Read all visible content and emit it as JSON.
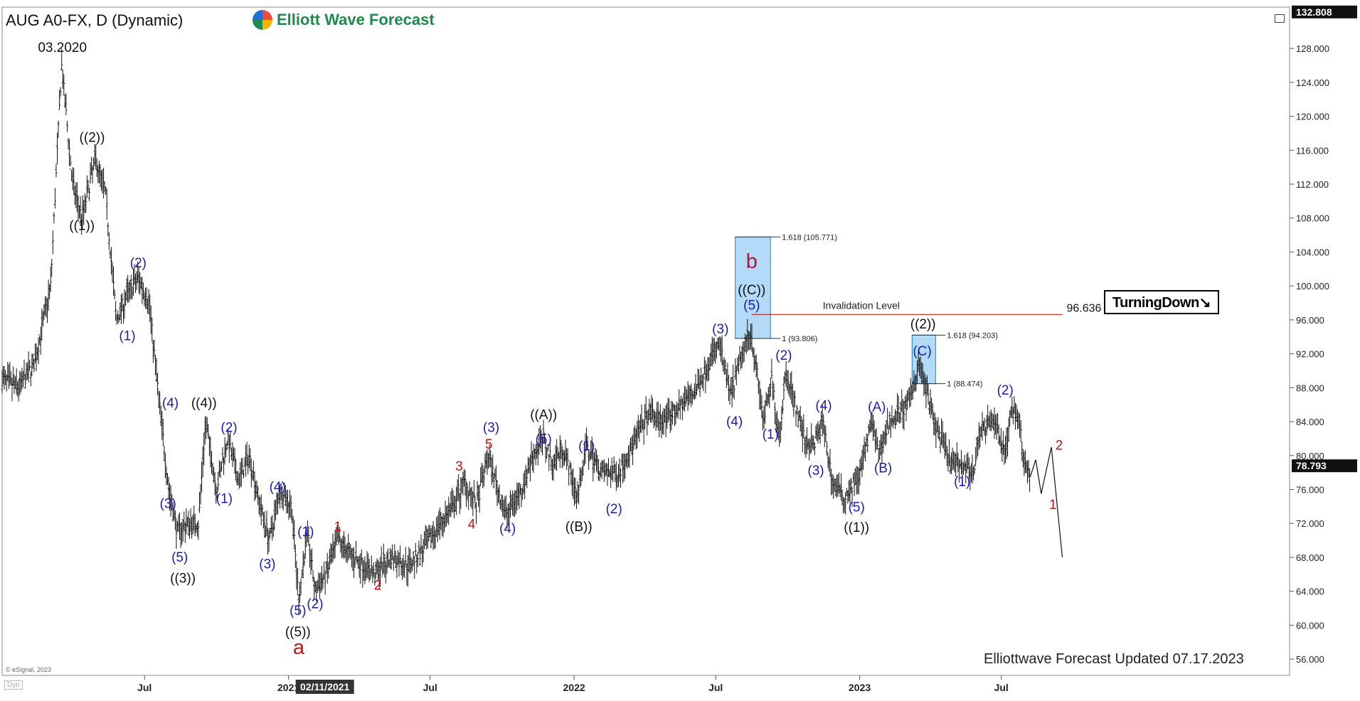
{
  "header": {
    "symbol_title": "AUG A0-FX, D (Dynamic)",
    "brand": "Elliott Wave Forecast"
  },
  "badge": {
    "label": "TurningDown↘"
  },
  "footer": {
    "updated": "Elliottwave Forecast Updated 07.17.2023",
    "credit": "© eSignal, 2023",
    "dyn": "Dyn"
  },
  "colors": {
    "black": "#111111",
    "blue": "#1a1ab8",
    "red": "#cc1111",
    "darkred": "#b0143c",
    "box_fill": "#b3dbf7",
    "box_stroke": "#1a7fc4",
    "price_line": "#d01c1c"
  },
  "chart_data": {
    "type": "line",
    "style": "ohlc-bars",
    "ylim": [
      54.5,
      133.5
    ],
    "yticks": [
      "56.000",
      "60.000",
      "64.000",
      "68.000",
      "72.000",
      "76.000",
      "80.000",
      "84.000",
      "88.000",
      "92.000",
      "96.000",
      "100.000",
      "104.000",
      "108.000",
      "112.000",
      "116.000",
      "120.000",
      "124.000",
      "128.000"
    ],
    "x_tick_labels": [
      "Jul",
      "2021",
      "02/11/2021",
      "Jul",
      "2022",
      "Jul",
      "2023",
      "Jul"
    ],
    "price_tags": {
      "top": "132.808",
      "last": "78.793"
    },
    "price_path": [
      [
        "2020-01-01",
        89
      ],
      [
        "2020-01-22",
        88
      ],
      [
        "2020-02-12",
        91
      ],
      [
        "2020-03-03",
        100
      ],
      [
        "2020-03-17",
        126
      ],
      [
        "2020-03-31",
        112
      ],
      [
        "2020-04-12",
        108
      ],
      [
        "2020-04-29",
        115
      ],
      [
        "2020-05-12",
        111
      ],
      [
        "2020-05-26",
        96
      ],
      [
        "2020-06-09",
        99
      ],
      [
        "2020-06-23",
        101
      ],
      [
        "2020-07-07",
        98
      ],
      [
        "2020-07-20",
        86
      ],
      [
        "2020-08-01",
        76
      ],
      [
        "2020-08-12",
        71
      ],
      [
        "2020-08-25",
        72
      ],
      [
        "2020-09-08",
        72
      ],
      [
        "2020-09-17",
        84
      ],
      [
        "2020-10-01",
        76
      ],
      [
        "2020-10-15",
        82
      ],
      [
        "2020-10-29",
        77
      ],
      [
        "2020-11-12",
        80
      ],
      [
        "2020-11-26",
        74
      ],
      [
        "2020-12-08",
        70
      ],
      [
        "2020-12-21",
        76
      ],
      [
        "2021-01-05",
        74
      ],
      [
        "2021-01-14",
        63
      ],
      [
        "2021-01-25",
        71
      ],
      [
        "2021-02-04",
        64
      ],
      [
        "2021-02-18",
        66
      ],
      [
        "2021-03-05",
        70
      ],
      [
        "2021-03-25",
        68
      ],
      [
        "2021-04-21",
        66
      ],
      [
        "2021-05-12",
        68
      ],
      [
        "2021-06-02",
        67
      ],
      [
        "2021-06-23",
        69
      ],
      [
        "2021-07-14",
        72
      ],
      [
        "2021-07-31",
        74
      ],
      [
        "2021-08-14",
        77
      ],
      [
        "2021-08-29",
        74
      ],
      [
        "2021-09-13",
        80
      ],
      [
        "2021-10-05",
        73
      ],
      [
        "2021-10-26",
        76
      ],
      [
        "2021-11-09",
        80
      ],
      [
        "2021-11-23",
        82
      ],
      [
        "2021-12-04",
        79
      ],
      [
        "2021-12-18",
        81
      ],
      [
        "2022-01-05",
        75
      ],
      [
        "2022-01-16",
        81
      ],
      [
        "2022-02-06",
        78
      ],
      [
        "2022-02-27",
        78
      ],
      [
        "2022-03-16",
        81
      ],
      [
        "2022-04-06",
        85
      ],
      [
        "2022-04-27",
        84
      ],
      [
        "2022-05-18",
        86
      ],
      [
        "2022-06-08",
        88
      ],
      [
        "2022-06-27",
        92
      ],
      [
        "2022-07-06",
        93
      ],
      [
        "2022-07-20",
        87
      ],
      [
        "2022-08-04",
        92
      ],
      [
        "2022-08-14",
        95
      ],
      [
        "2022-08-21",
        91
      ],
      [
        "2022-08-31",
        84
      ],
      [
        "2022-09-11",
        89
      ],
      [
        "2022-09-20",
        82
      ],
      [
        "2022-09-29",
        90
      ],
      [
        "2022-10-22",
        82
      ],
      [
        "2022-11-02",
        81
      ],
      [
        "2022-11-15",
        84
      ],
      [
        "2022-11-27",
        77
      ],
      [
        "2022-12-12",
        75
      ],
      [
        "2023-01-02",
        78
      ],
      [
        "2023-01-16",
        84
      ],
      [
        "2023-01-25",
        80
      ],
      [
        "2023-02-08",
        84
      ],
      [
        "2023-03-04",
        86
      ],
      [
        "2023-03-18",
        91
      ],
      [
        "2023-04-06",
        84
      ],
      [
        "2023-04-27",
        79
      ],
      [
        "2023-05-09",
        79
      ],
      [
        "2023-05-27",
        78
      ],
      [
        "2023-06-03",
        83
      ],
      [
        "2023-06-24",
        84
      ],
      [
        "2023-07-05",
        80
      ],
      [
        "2023-07-15",
        86
      ],
      [
        "2023-07-24",
        84
      ],
      [
        "2023-07-31",
        79
      ],
      [
        "2023-08-07",
        77.5
      ]
    ],
    "projection": [
      [
        "2023-08-07",
        77.5
      ],
      [
        "2023-08-14",
        79.5
      ],
      [
        "2023-08-21",
        75.5
      ],
      [
        "2023-09-03",
        81
      ],
      [
        "2023-09-17",
        68
      ]
    ],
    "blue_boxes": [
      {
        "x0": "2022-07-26",
        "x1": "2022-09-09",
        "y0": 93.806,
        "y1": 105.771,
        "top_label": "1.618 (105.771)",
        "bottom_label": "1 (93.806)"
      },
      {
        "x0": "2023-03-09",
        "x1": "2023-04-08",
        "y0": 88.474,
        "y1": 94.203,
        "top_label": "1.618 (94.203)",
        "bottom_label": "1 (88.474)"
      }
    ],
    "invalidation": {
      "x0": "2022-08-16",
      "x1": "2023-09-17",
      "y": 96.636,
      "label": "Invalidation Level",
      "value_label": "96.636"
    },
    "labels": [
      {
        "text": "03.2020",
        "date": "2020-03-18",
        "price": 127.6,
        "color": "black"
      },
      {
        "text": "((1))",
        "date": "2020-04-12",
        "price": 106.6,
        "color": "black"
      },
      {
        "text": "((2))",
        "date": "2020-04-25",
        "price": 117.0,
        "color": "black"
      },
      {
        "text": "(2)",
        "date": "2020-06-23",
        "price": 102.2,
        "color": "blue"
      },
      {
        "text": "(1)",
        "date": "2020-06-09",
        "price": 93.6,
        "color": "blue"
      },
      {
        "text": "(4)",
        "date": "2020-08-03",
        "price": 85.7,
        "color": "blue"
      },
      {
        "text": "((4))",
        "date": "2020-09-15",
        "price": 85.7,
        "color": "black"
      },
      {
        "text": "(2)",
        "date": "2020-10-17",
        "price": 82.8,
        "color": "blue"
      },
      {
        "text": "(3)",
        "date": "2020-07-31",
        "price": 73.8,
        "color": "blue"
      },
      {
        "text": "(1)",
        "date": "2020-10-11",
        "price": 74.4,
        "color": "blue"
      },
      {
        "text": "(5)",
        "date": "2020-08-15",
        "price": 67.5,
        "color": "blue"
      },
      {
        "text": "((3))",
        "date": "2020-08-19",
        "price": 65.0,
        "color": "black"
      },
      {
        "text": "(4)",
        "date": "2020-12-18",
        "price": 75.8,
        "color": "blue"
      },
      {
        "text": "(3)",
        "date": "2020-12-05",
        "price": 66.7,
        "color": "blue"
      },
      {
        "text": "(1)",
        "date": "2021-01-23",
        "price": 70.5,
        "color": "blue"
      },
      {
        "text": "1",
        "date": "2021-03-05",
        "price": 71.1,
        "color": "red"
      },
      {
        "text": "(5)",
        "date": "2021-01-13",
        "price": 61.2,
        "color": "blue"
      },
      {
        "text": "((5))",
        "date": "2021-01-13",
        "price": 58.7,
        "color": "black"
      },
      {
        "text": "(2)",
        "date": "2021-02-04",
        "price": 62.0,
        "color": "blue"
      },
      {
        "text": "a",
        "date": "2021-01-14",
        "price": 56.6,
        "color": "red",
        "size": 29
      },
      {
        "text": "2",
        "date": "2021-04-25",
        "price": 64.2,
        "color": "red"
      },
      {
        "text": "3",
        "date": "2021-08-07",
        "price": 78.2,
        "color": "red"
      },
      {
        "text": "4",
        "date": "2021-08-23",
        "price": 71.4,
        "color": "red"
      },
      {
        "text": "5",
        "date": "2021-09-14",
        "price": 80.8,
        "color": "red"
      },
      {
        "text": "(3)",
        "date": "2021-09-17",
        "price": 82.8,
        "color": "blue"
      },
      {
        "text": "(4)",
        "date": "2021-10-08",
        "price": 70.9,
        "color": "blue"
      },
      {
        "text": "((A))",
        "date": "2021-11-23",
        "price": 84.3,
        "color": "black"
      },
      {
        "text": "(5)",
        "date": "2021-11-23",
        "price": 81.4,
        "color": "blue"
      },
      {
        "text": "(1)",
        "date": "2022-01-17",
        "price": 80.6,
        "color": "blue"
      },
      {
        "text": "((B))",
        "date": "2022-01-07",
        "price": 71.1,
        "color": "black"
      },
      {
        "text": "(2)",
        "date": "2022-02-21",
        "price": 73.2,
        "color": "blue"
      },
      {
        "text": "b",
        "date": "2022-08-16",
        "price": 102.1,
        "color": "darkred",
        "size": 29
      },
      {
        "text": "((C))",
        "date": "2022-08-16",
        "price": 99.0,
        "color": "black"
      },
      {
        "text": "(5)",
        "date": "2022-08-16",
        "price": 97.2,
        "color": "blue"
      },
      {
        "text": "(3)",
        "date": "2022-07-07",
        "price": 94.4,
        "color": "blue"
      },
      {
        "text": "(4)",
        "date": "2022-07-25",
        "price": 83.5,
        "color": "blue"
      },
      {
        "text": "(2)",
        "date": "2022-09-26",
        "price": 91.3,
        "color": "blue"
      },
      {
        "text": "(1)",
        "date": "2022-09-09",
        "price": 82.0,
        "color": "blue"
      },
      {
        "text": "(4)",
        "date": "2022-11-16",
        "price": 85.4,
        "color": "blue"
      },
      {
        "text": "(3)",
        "date": "2022-11-06",
        "price": 77.7,
        "color": "blue"
      },
      {
        "text": "(5)",
        "date": "2022-12-28",
        "price": 73.4,
        "color": "blue"
      },
      {
        "text": "((1))",
        "date": "2022-12-28",
        "price": 71.0,
        "color": "black"
      },
      {
        "text": "(A)",
        "date": "2023-01-23",
        "price": 85.2,
        "color": "blue"
      },
      {
        "text": "(B)",
        "date": "2023-01-31",
        "price": 78.0,
        "color": "blue"
      },
      {
        "text": "((2))",
        "date": "2023-03-23",
        "price": 95.0,
        "color": "black"
      },
      {
        "text": "(C)",
        "date": "2023-03-22",
        "price": 91.8,
        "color": "blue"
      },
      {
        "text": "(1)",
        "date": "2023-05-12",
        "price": 76.4,
        "color": "blue"
      },
      {
        "text": "(2)",
        "date": "2023-07-06",
        "price": 87.2,
        "color": "blue"
      },
      {
        "text": "2",
        "date": "2023-09-13",
        "price": 80.7,
        "color": "red"
      },
      {
        "text": "1",
        "date": "2023-09-05",
        "price": 73.7,
        "color": "red"
      }
    ]
  }
}
